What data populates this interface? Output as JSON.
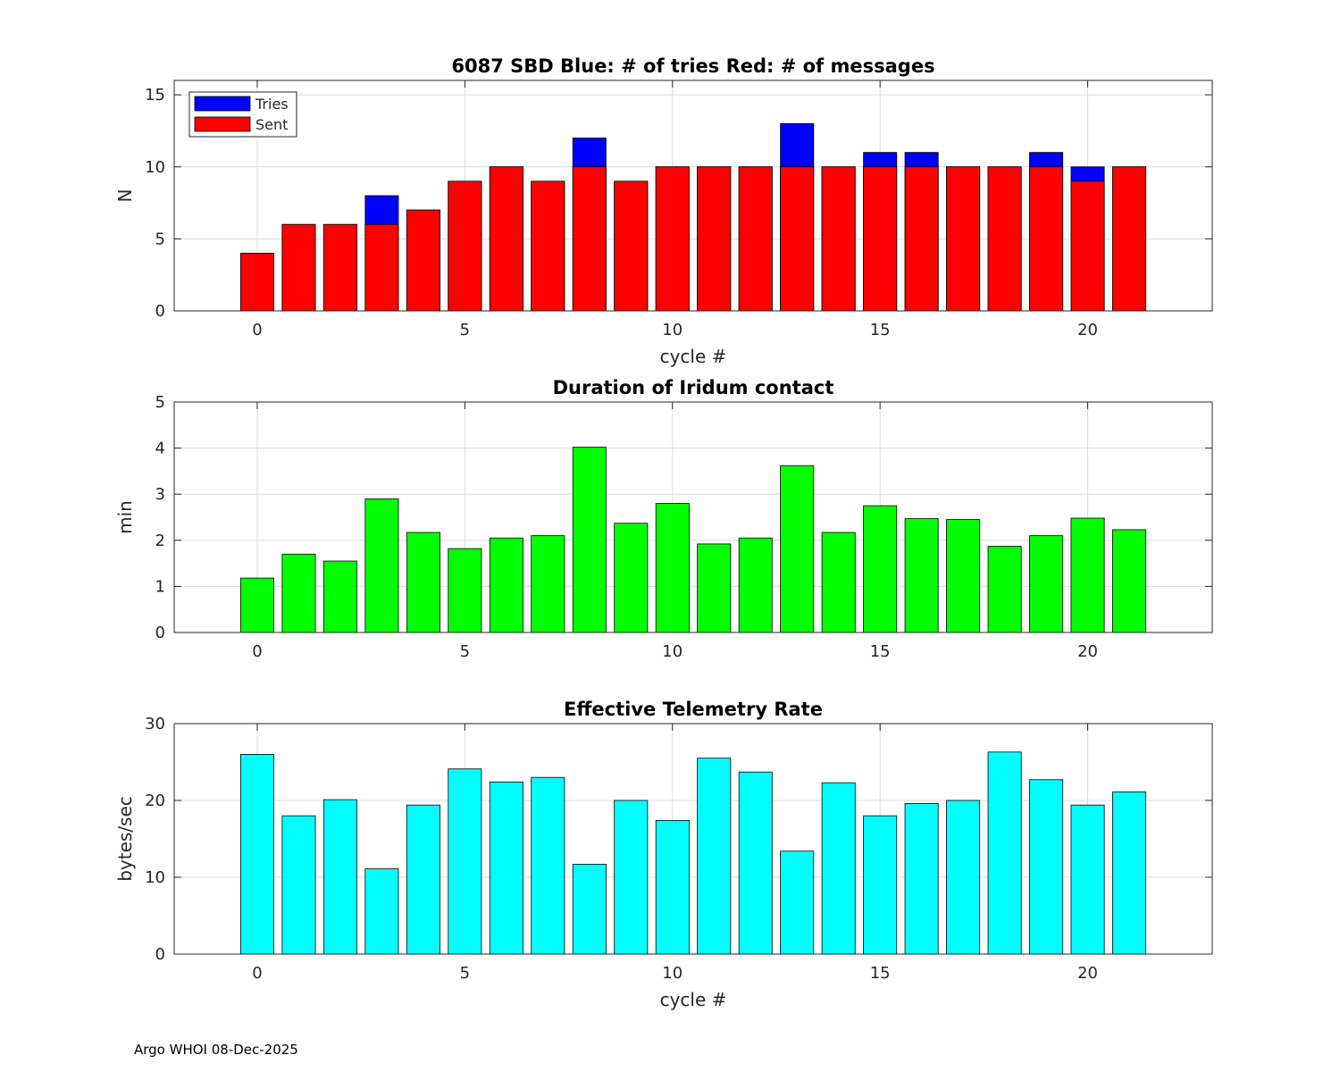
{
  "chart_data": [
    {
      "type": "bar",
      "stacked_overlay": true,
      "title": "6087 SBD  Blue: # of tries   Red: # of messages",
      "xlabel": "cycle #",
      "ylabel": "N",
      "xlim": [
        -2,
        23
      ],
      "ylim": [
        0,
        16
      ],
      "xticks": [
        "0",
        "5",
        "10",
        "15",
        "20"
      ],
      "yticks": [
        "0",
        "5",
        "10",
        "15"
      ],
      "grid": true,
      "legend": {
        "position": "top-left",
        "entries": [
          "Tries",
          "Sent"
        ]
      },
      "categories": [
        0,
        1,
        2,
        3,
        4,
        5,
        6,
        7,
        8,
        9,
        10,
        11,
        12,
        13,
        14,
        15,
        16,
        17,
        18,
        19,
        20,
        21
      ],
      "series": [
        {
          "name": "Tries",
          "color": "#0000ff",
          "values": [
            4,
            6,
            6,
            8,
            7,
            9,
            10,
            9,
            12,
            9,
            10,
            10,
            10,
            13,
            10,
            11,
            11,
            10,
            10,
            11,
            10,
            10
          ]
        },
        {
          "name": "Sent",
          "color": "#ff0000",
          "values": [
            4,
            6,
            6,
            6,
            7,
            9,
            10,
            9,
            10,
            9,
            10,
            10,
            10,
            10,
            10,
            10,
            10,
            10,
            10,
            10,
            9,
            10
          ]
        }
      ]
    },
    {
      "type": "bar",
      "title": "Duration of Iridum contact",
      "xlabel": "",
      "ylabel": "min",
      "xlim": [
        -2,
        23
      ],
      "ylim": [
        0,
        5
      ],
      "xticks": [
        "0",
        "5",
        "10",
        "15",
        "20"
      ],
      "yticks": [
        "0",
        "1",
        "2",
        "3",
        "4",
        "5"
      ],
      "grid": true,
      "categories": [
        0,
        1,
        2,
        3,
        4,
        5,
        6,
        7,
        8,
        9,
        10,
        11,
        12,
        13,
        14,
        15,
        16,
        17,
        18,
        19,
        20,
        21
      ],
      "series": [
        {
          "name": "Duration",
          "color": "#00ff00",
          "values": [
            1.18,
            1.7,
            1.55,
            2.9,
            2.17,
            1.82,
            2.05,
            2.1,
            4.02,
            2.37,
            2.8,
            1.92,
            2.05,
            3.62,
            2.17,
            2.75,
            2.47,
            2.45,
            1.87,
            2.1,
            2.48,
            2.23
          ]
        }
      ]
    },
    {
      "type": "bar",
      "title": "Effective Telemetry Rate",
      "xlabel": "cycle #",
      "ylabel": "bytes/sec",
      "xlim": [
        -2,
        23
      ],
      "ylim": [
        0,
        30
      ],
      "xticks": [
        "0",
        "5",
        "10",
        "15",
        "20"
      ],
      "yticks": [
        "0",
        "10",
        "20",
        "30"
      ],
      "grid": true,
      "categories": [
        0,
        1,
        2,
        3,
        4,
        5,
        6,
        7,
        8,
        9,
        10,
        11,
        12,
        13,
        14,
        15,
        16,
        17,
        18,
        19,
        20,
        21
      ],
      "series": [
        {
          "name": "Rate",
          "color": "#00ffff",
          "values": [
            26.0,
            18.0,
            20.1,
            11.1,
            19.4,
            24.1,
            22.4,
            23.0,
            11.7,
            20.0,
            17.4,
            25.5,
            23.7,
            13.4,
            22.3,
            18.0,
            19.6,
            20.0,
            26.3,
            22.7,
            19.4,
            21.1
          ]
        }
      ]
    }
  ],
  "footer": {
    "text": "Argo WHOI 08-Dec-2025"
  }
}
